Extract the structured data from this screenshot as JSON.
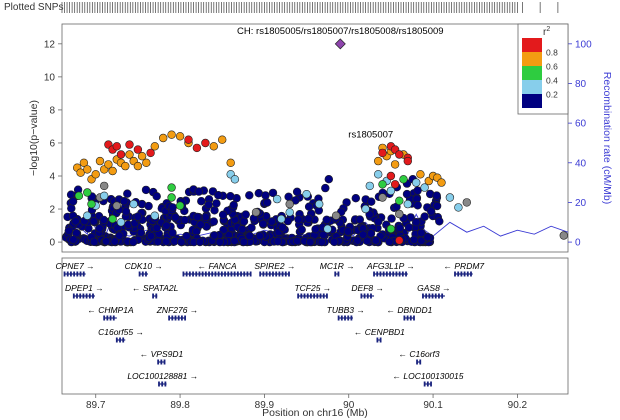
{
  "chart_data": {
    "type": "scatter",
    "title": "",
    "plotted_snps_label": "Plotted SNPs",
    "xlabel": "Position on chr16 (Mb)",
    "ylabel_left": "−log10(p−value)",
    "ylabel_right": "Recombination rate (cM/Mb)",
    "xlim": [
      89.66,
      90.26
    ],
    "ylim": [
      -0.6,
      13.2
    ],
    "y2lim": [
      -5,
      110
    ],
    "x_ticks": [
      89.7,
      89.8,
      89.9,
      90.0,
      90.1,
      90.2
    ],
    "x_tick_labels": [
      "89.7",
      "89.8",
      "89.9",
      "90",
      "90.1",
      "90.2"
    ],
    "y_ticks": [
      0,
      2,
      4,
      6,
      8,
      10,
      12
    ],
    "y_tick_labels": [
      "0",
      "2",
      "4",
      "6",
      "8",
      "10",
      "12"
    ],
    "y2_ticks": [
      0,
      20,
      40,
      60,
      80,
      100
    ],
    "y2_tick_labels": [
      "0",
      "20",
      "40",
      "60",
      "80",
      "100"
    ],
    "legend": {
      "title": "r2",
      "position": "top-right",
      "breaks": [
        "0.8",
        "0.6",
        "0.4",
        "0.2"
      ],
      "colors": [
        "#e31a1c",
        "#f39c12",
        "#2ecc40",
        "#87ceeb",
        "#000080"
      ]
    },
    "annotations": [
      {
        "text": "CH: rs1805005/rs1805007/rs1805008/rs1805009",
        "x": 89.99,
        "y": 12.0,
        "color": "#8e44ad",
        "shape": "diamond"
      },
      {
        "text": "rs1805007",
        "x": 89.99,
        "y": 6.1
      }
    ],
    "recombination_rate": {
      "color": "#3b3bd4",
      "points": [
        [
          89.66,
          1
        ],
        [
          89.67,
          3
        ],
        [
          89.68,
          8
        ],
        [
          89.69,
          4
        ],
        [
          89.695,
          15
        ],
        [
          89.7,
          6
        ],
        [
          89.71,
          2
        ],
        [
          89.72,
          12
        ],
        [
          89.73,
          4
        ],
        [
          89.74,
          3
        ],
        [
          89.76,
          6
        ],
        [
          89.78,
          2
        ],
        [
          89.8,
          4
        ],
        [
          89.82,
          3
        ],
        [
          89.84,
          5
        ],
        [
          89.86,
          2
        ],
        [
          89.88,
          3
        ],
        [
          89.9,
          6
        ],
        [
          89.92,
          4
        ],
        [
          89.94,
          3
        ],
        [
          89.96,
          5
        ],
        [
          89.975,
          8
        ],
        [
          89.985,
          4
        ],
        [
          89.995,
          7
        ],
        [
          90.005,
          3
        ],
        [
          90.02,
          10
        ],
        [
          90.03,
          5
        ],
        [
          90.04,
          12
        ],
        [
          90.05,
          6
        ],
        [
          90.06,
          9
        ],
        [
          90.07,
          4
        ],
        [
          90.08,
          14
        ],
        [
          90.09,
          6
        ],
        [
          90.1,
          3
        ],
        [
          90.12,
          10
        ],
        [
          90.14,
          5
        ],
        [
          90.16,
          8
        ],
        [
          90.18,
          3
        ],
        [
          90.2,
          6
        ],
        [
          90.22,
          4
        ],
        [
          90.24,
          8
        ],
        [
          90.26,
          5
        ]
      ]
    },
    "genes": [
      {
        "name": "CPNE7",
        "dir": "right",
        "start": 89.663,
        "end": 89.688,
        "row": 0
      },
      {
        "name": "CDK10",
        "dir": "right",
        "start": 89.752,
        "end": 89.762,
        "row": 0
      },
      {
        "name": "FANCA",
        "dir": "left",
        "start": 89.804,
        "end": 89.884,
        "row": 0
      },
      {
        "name": "SPIRE2",
        "dir": "right",
        "start": 89.895,
        "end": 89.93,
        "row": 0
      },
      {
        "name": "MC1R",
        "dir": "right",
        "start": 89.984,
        "end": 89.987,
        "row": 0
      },
      {
        "name": "AFG3L1P",
        "dir": "right",
        "start": 90.03,
        "end": 90.07,
        "row": 0
      },
      {
        "name": "PRDM7",
        "dir": "left",
        "start": 90.126,
        "end": 90.147,
        "row": 0
      },
      {
        "name": "DPEP1",
        "dir": "right",
        "start": 89.674,
        "end": 89.699,
        "row": 1
      },
      {
        "name": "SPATA2L",
        "dir": "left",
        "start": 89.768,
        "end": 89.773,
        "row": 1
      },
      {
        "name": "TCF25",
        "dir": "right",
        "start": 89.94,
        "end": 89.975,
        "row": 1
      },
      {
        "name": "DEF8",
        "dir": "right",
        "start": 90.015,
        "end": 90.03,
        "row": 1
      },
      {
        "name": "GAS8",
        "dir": "right",
        "start": 90.088,
        "end": 90.114,
        "row": 1
      },
      {
        "name": "CHMP1A",
        "dir": "left",
        "start": 89.71,
        "end": 89.725,
        "row": 2
      },
      {
        "name": "ZNF276",
        "dir": "right",
        "start": 89.787,
        "end": 89.807,
        "row": 2
      },
      {
        "name": "TUBB3",
        "dir": "right",
        "start": 89.988,
        "end": 90.005,
        "row": 2
      },
      {
        "name": "DBNDD1",
        "dir": "left",
        "start": 90.066,
        "end": 90.078,
        "row": 2
      },
      {
        "name": "C16orf55",
        "dir": "right",
        "start": 89.725,
        "end": 89.735,
        "row": 3
      },
      {
        "name": "CENPBD1",
        "dir": "left",
        "start": 90.034,
        "end": 90.037,
        "row": 3
      },
      {
        "name": "VPS9D1",
        "dir": "left",
        "start": 89.774,
        "end": 89.782,
        "row": 4
      },
      {
        "name": "C16orf3",
        "dir": "left",
        "start": 90.081,
        "end": 90.084,
        "row": 4
      },
      {
        "name": "LOC100128881",
        "dir": "right",
        "start": 89.775,
        "end": 89.784,
        "row": 5
      },
      {
        "name": "LOC100130015",
        "dir": "left",
        "start": 90.09,
        "end": 90.098,
        "row": 5
      }
    ]
  }
}
